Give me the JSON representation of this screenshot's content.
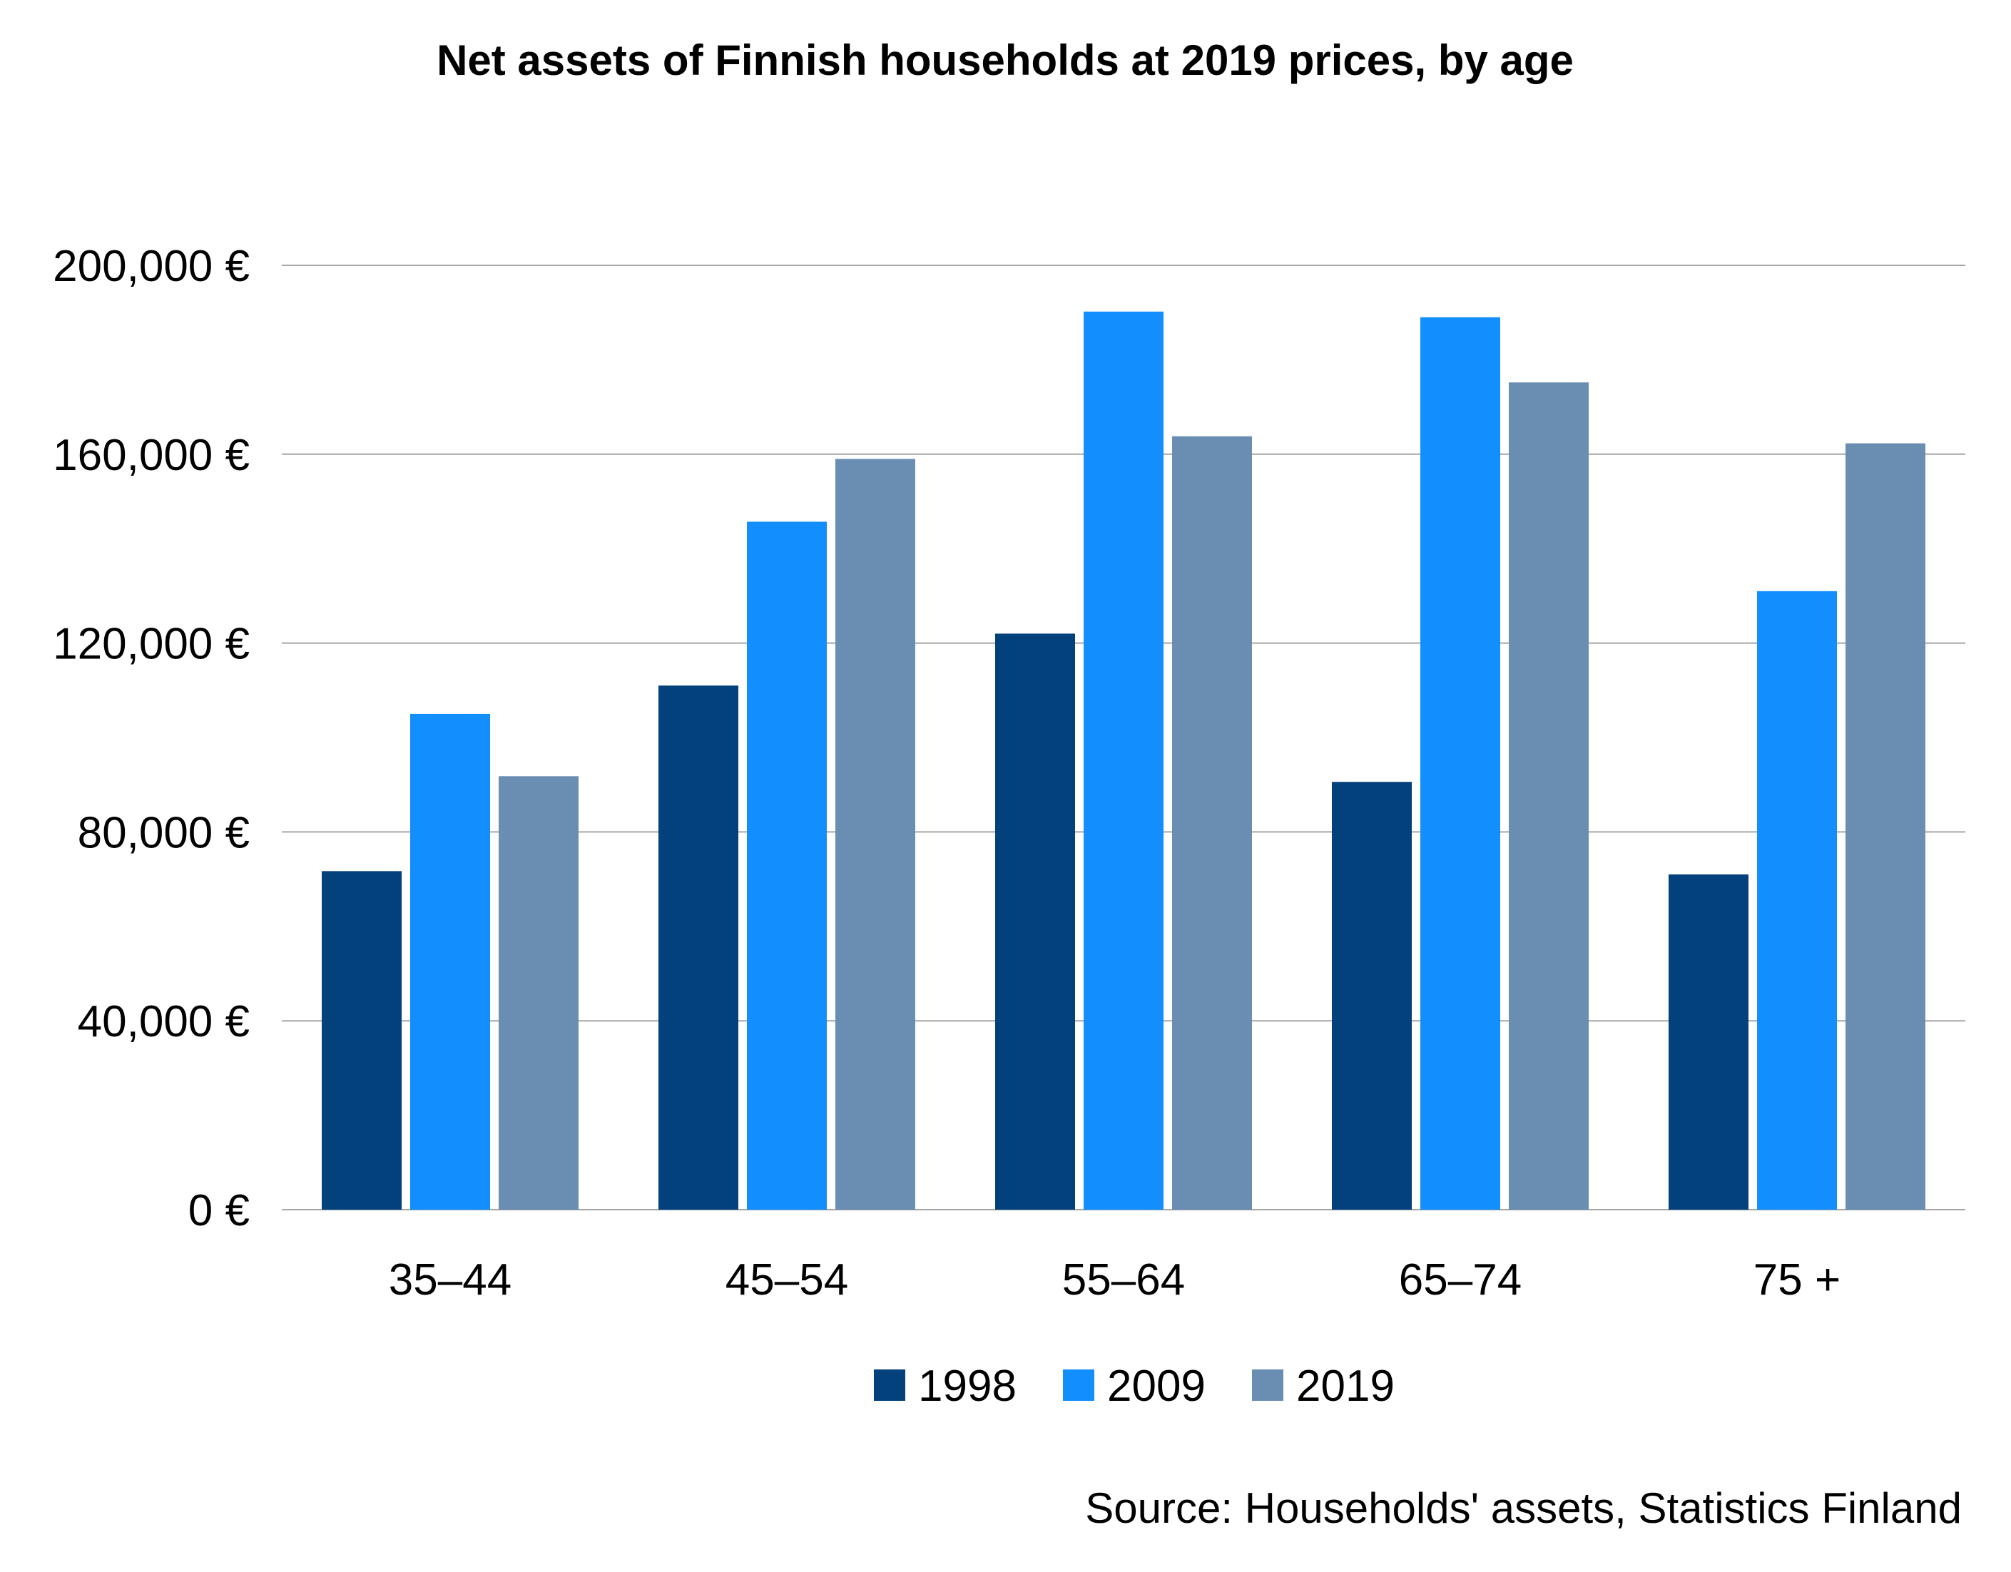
{
  "chart_data": {
    "type": "bar",
    "title": "Net assets of Finnish households at 2019 prices, by age",
    "xlabel": "",
    "ylabel": "",
    "categories": [
      "35–44",
      "45–54",
      "55–64",
      "65–74",
      "75 +"
    ],
    "series": [
      {
        "name": "1998",
        "color": "#03417C",
        "values": [
          71700,
          111000,
          122000,
          90600,
          71000
        ]
      },
      {
        "name": "2009",
        "color": "#128EFD",
        "values": [
          105000,
          145700,
          190200,
          189000,
          131000
        ]
      },
      {
        "name": "2019",
        "color": "#6A8DB2",
        "values": [
          91800,
          159000,
          163800,
          175200,
          162300
        ]
      }
    ],
    "ylim": [
      0,
      200000
    ],
    "yticks": [
      0,
      40000,
      80000,
      120000,
      160000,
      200000
    ],
    "ytick_labels": [
      "0  €",
      "40,000 €",
      "80,000 €",
      "120,000 €",
      "160,000 €",
      "200,000 €"
    ],
    "grid": true,
    "legend_position": "bottom",
    "source": "Source: Households' assets, Statistics Finland",
    "colors": {
      "gridline": "#A6A6A6",
      "text": "#000000",
      "background": "#FFFFFF"
    }
  }
}
